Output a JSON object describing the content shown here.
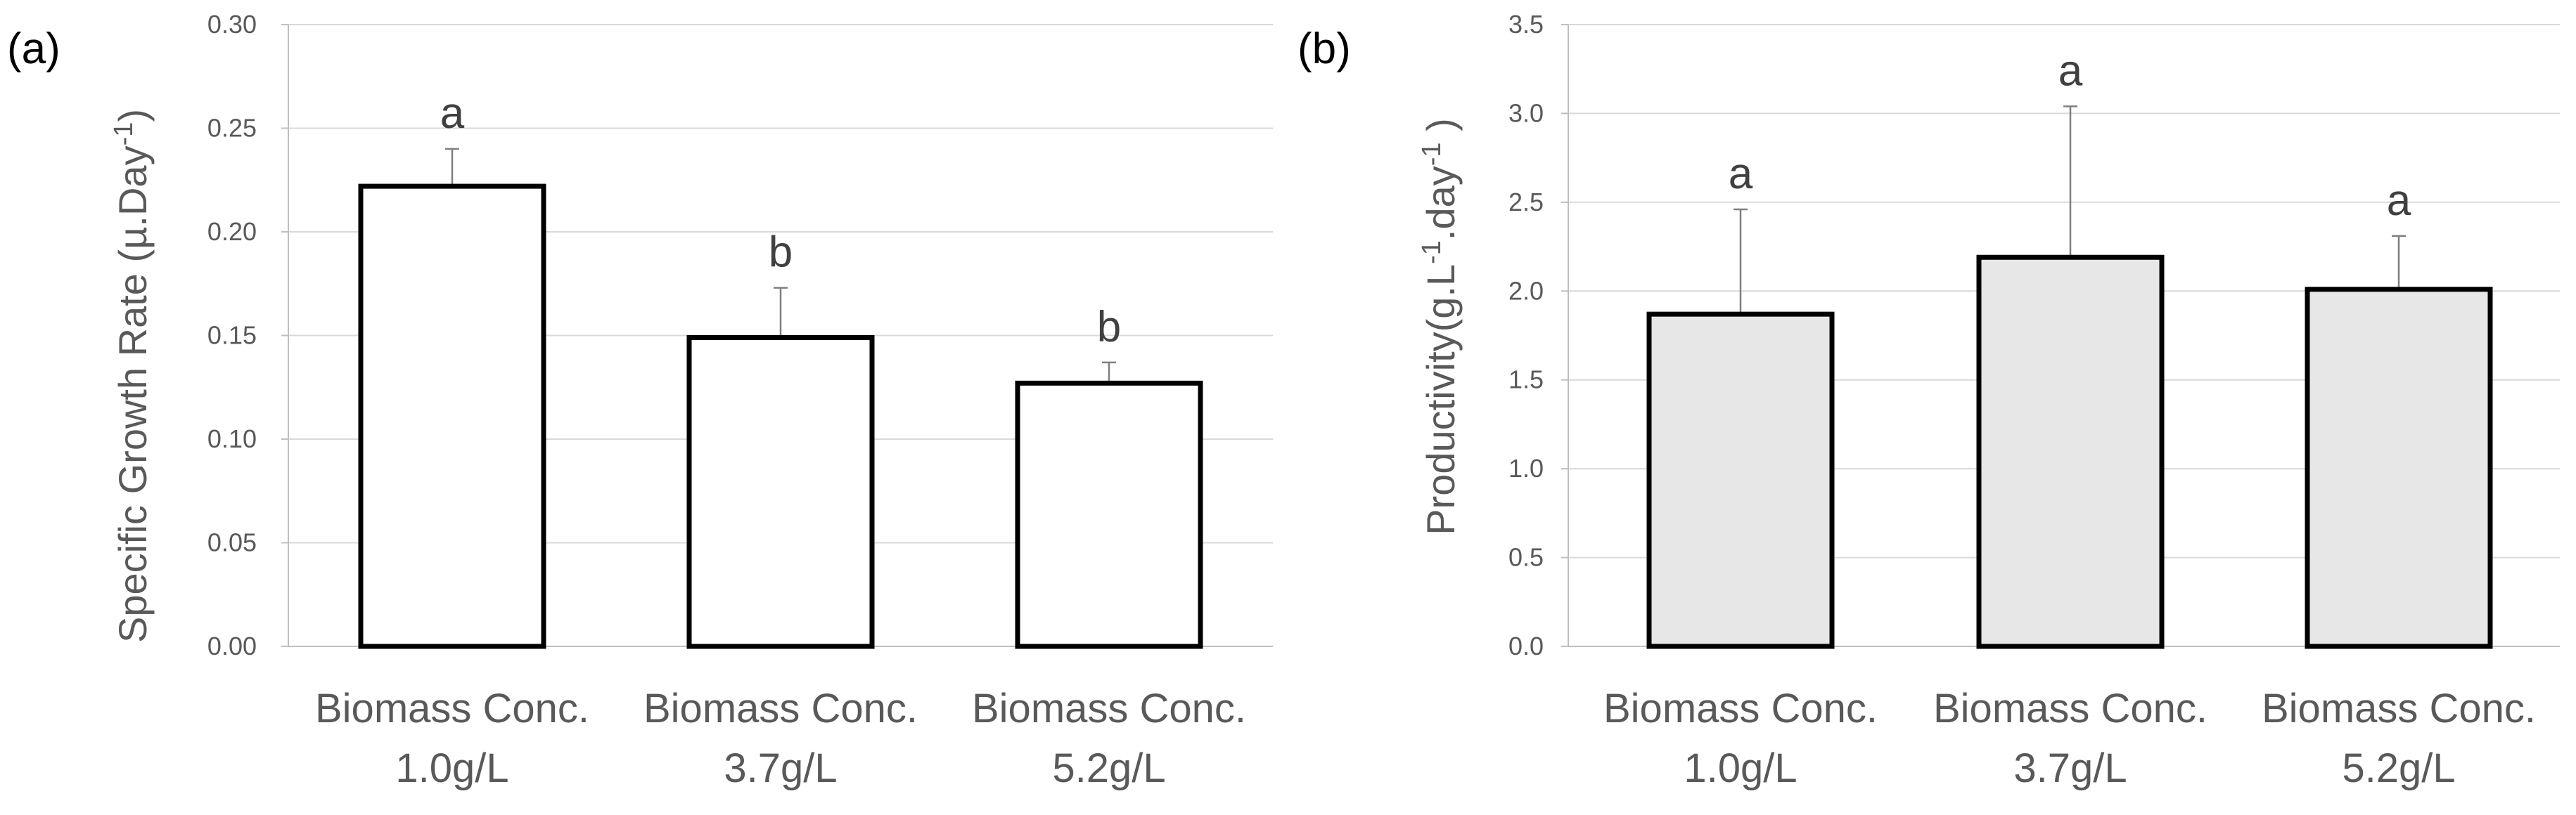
{
  "colors": {
    "gridline": "#d9d9d9",
    "axis": "#bfbfbf",
    "bar_edge": "#000000",
    "error_bar": "#7f7f7f",
    "text": "#595959"
  },
  "chart_data": [
    {
      "type": "bar",
      "panel_label": "(a)",
      "ylabel": "Specific Growth Rate (µ.Day",
      "ylabel_sup": "-1",
      "ylabel_end": ")",
      "ylim": [
        0,
        0.3
      ],
      "yticks": [
        "0.00",
        "0.05",
        "0.10",
        "0.15",
        "0.20",
        "0.25",
        "0.30"
      ],
      "categories": [
        [
          "Biomass Conc.",
          "1.0g/L"
        ],
        [
          "Biomass Conc.",
          "3.7g/L"
        ],
        [
          "Biomass Conc.",
          "5.2g/L"
        ]
      ],
      "values": [
        0.222,
        0.149,
        0.127
      ],
      "errors": [
        0.018,
        0.024,
        0.01
      ],
      "significance": [
        "a",
        "b",
        "b"
      ],
      "bar_fill": "#ffffff",
      "grid": true
    },
    {
      "type": "bar",
      "panel_label": "(b)",
      "ylabel": "Productivity(g.L",
      "ylabel_sup": "-1",
      "ylabel_mid": ".day",
      "ylabel_sup2": "-1",
      "ylabel_end": " )",
      "ylim": [
        0,
        3.5
      ],
      "yticks": [
        "0.0",
        "0.5",
        "1.0",
        "1.5",
        "2.0",
        "2.5",
        "3.0",
        "3.5"
      ],
      "categories": [
        [
          "Biomass Conc.",
          "1.0g/L"
        ],
        [
          "Biomass Conc.",
          "3.7g/L"
        ],
        [
          "Biomass Conc.",
          "5.2g/L"
        ]
      ],
      "values": [
        1.87,
        2.19,
        2.01
      ],
      "errors": [
        0.59,
        0.85,
        0.3
      ],
      "significance": [
        "a",
        "a",
        "a"
      ],
      "bar_fill": "#e7e7e7",
      "grid": true
    }
  ]
}
